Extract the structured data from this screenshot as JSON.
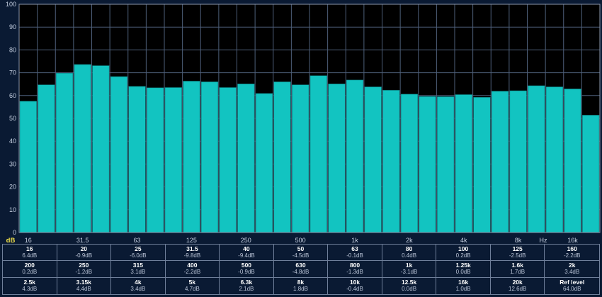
{
  "chart_data": {
    "type": "bar",
    "title": "",
    "ylabel": "dB",
    "xlabel": "Hz",
    "ylim": [
      0,
      100
    ],
    "y_ticks": [
      "0",
      "10",
      "20",
      "30",
      "40",
      "50",
      "60",
      "70",
      "80",
      "90",
      "100"
    ],
    "x_tick_labels": [
      "16",
      "31.5",
      "63",
      "125",
      "250",
      "500",
      "1k",
      "2k",
      "4k",
      "8k",
      "16k"
    ],
    "bands": [
      "16",
      "20",
      "25",
      "31.5",
      "40",
      "50",
      "63",
      "80",
      "100",
      "125",
      "160",
      "200",
      "250",
      "315",
      "400",
      "500",
      "630",
      "800",
      "1k",
      "1.25k",
      "1.6k",
      "2k",
      "2.5k",
      "3.15k",
      "4k",
      "5k",
      "6.3k",
      "8k",
      "10k",
      "12.5k",
      "16k",
      "20k"
    ],
    "values": [
      57.5,
      64.7,
      69.8,
      73.6,
      73.1,
      68.3,
      64.0,
      63.4,
      63.5,
      66.3,
      66.0,
      63.5,
      65.1,
      60.9,
      66.0,
      64.7,
      68.7,
      65.1,
      66.8,
      63.8,
      62.3,
      60.6,
      59.6,
      59.5,
      60.4,
      59.2,
      61.9,
      62.1,
      64.3,
      63.8,
      62.9,
      51.4
    ],
    "colors": {
      "bar": "#12c4c1",
      "bar_border": "#0d7f80",
      "plot_bg": "#000000",
      "grid": "#4e5f7a",
      "frame": "#8d98ac"
    }
  },
  "readout": [
    {
      "band": "16",
      "value": "6.4dB"
    },
    {
      "band": "20",
      "value": "-0.9dB"
    },
    {
      "band": "25",
      "value": "-6.0dB"
    },
    {
      "band": "31.5",
      "value": "-9.8dB"
    },
    {
      "band": "40",
      "value": "-9.4dB"
    },
    {
      "band": "50",
      "value": "-4.5dB"
    },
    {
      "band": "63",
      "value": "-0.1dB"
    },
    {
      "band": "80",
      "value": "0.4dB"
    },
    {
      "band": "100",
      "value": "0.2dB"
    },
    {
      "band": "125",
      "value": "-2.5dB"
    },
    {
      "band": "160",
      "value": "-2.2dB"
    },
    {
      "band": "200",
      "value": "0.2dB"
    },
    {
      "band": "250",
      "value": "-1.2dB"
    },
    {
      "band": "315",
      "value": "3.1dB"
    },
    {
      "band": "400",
      "value": "-2.2dB"
    },
    {
      "band": "500",
      "value": "-0.9dB"
    },
    {
      "band": "630",
      "value": "-4.8dB"
    },
    {
      "band": "800",
      "value": "-1.3dB"
    },
    {
      "band": "1k",
      "value": "-3.1dB"
    },
    {
      "band": "1.25k",
      "value": "0.0dB"
    },
    {
      "band": "1.6k",
      "value": "1.7dB"
    },
    {
      "band": "2k",
      "value": "3.4dB"
    },
    {
      "band": "2.5k",
      "value": "4.3dB"
    },
    {
      "band": "3.15k",
      "value": "4.4dB"
    },
    {
      "band": "4k",
      "value": "3.4dB"
    },
    {
      "band": "5k",
      "value": "4.7dB"
    },
    {
      "band": "6.3k",
      "value": "2.1dB"
    },
    {
      "band": "8k",
      "value": "1.8dB"
    },
    {
      "band": "10k",
      "value": "-0.4dB"
    },
    {
      "band": "12.5k",
      "value": "0.0dB"
    },
    {
      "band": "16k",
      "value": "1.0dB"
    },
    {
      "band": "20k",
      "value": "12.6dB"
    },
    {
      "band": "Ref level",
      "value": "64.0dB"
    }
  ]
}
